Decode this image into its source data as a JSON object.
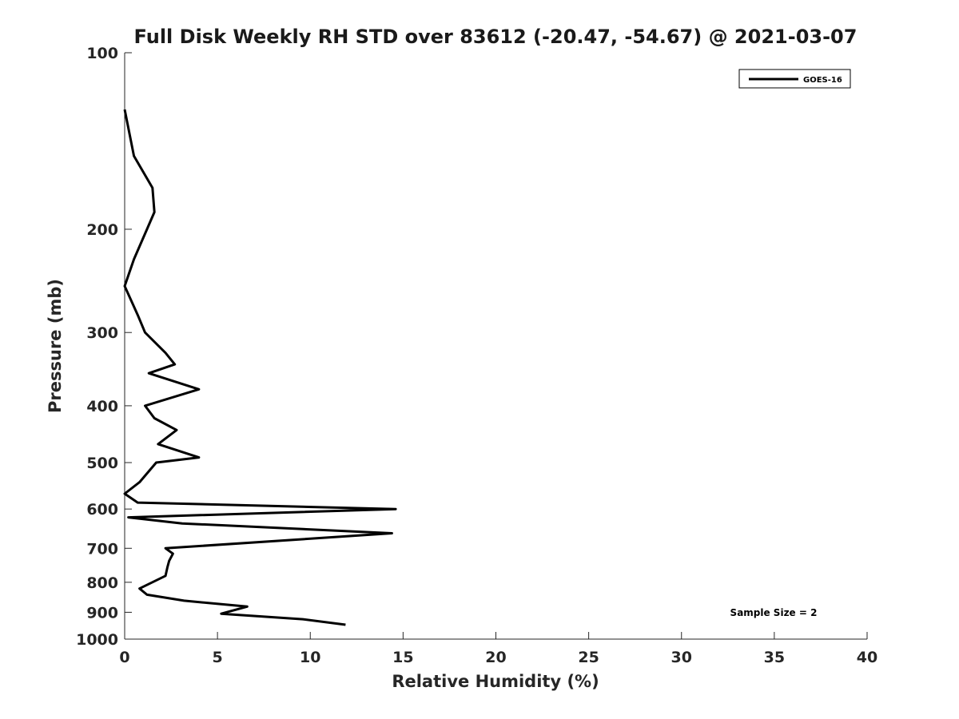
{
  "chart_data": {
    "type": "line",
    "title": "Full Disk Weekly RH STD over 83612 (-20.47, -54.67) @ 2021-03-07",
    "xlabel": "Relative Humidity (%)",
    "ylabel": "Pressure (mb)",
    "xlim": [
      0,
      40
    ],
    "ylim": [
      100,
      1000
    ],
    "yscale": "log",
    "yreversed": true,
    "grid": false,
    "x_ticks": [
      0,
      5,
      10,
      15,
      20,
      25,
      30,
      35,
      40
    ],
    "x_tick_labels": [
      "0",
      "5",
      "10",
      "15",
      "20",
      "25",
      "30",
      "35",
      "40"
    ],
    "y_ticks": [
      100,
      200,
      300,
      400,
      500,
      600,
      700,
      800,
      900,
      1000
    ],
    "y_tick_labels": [
      "100",
      "200",
      "300",
      "400",
      "500",
      "600",
      "700",
      "800",
      "900",
      "1000"
    ],
    "legend_position": "top-right",
    "annotation": "Sample Size = 2",
    "series": [
      {
        "name": "GOES-16",
        "color": "#000000",
        "points": [
          [
            0.0,
            125
          ],
          [
            0.5,
            150
          ],
          [
            1.5,
            170
          ],
          [
            1.6,
            187
          ],
          [
            1.2,
            200
          ],
          [
            0.5,
            225
          ],
          [
            0.0,
            250
          ],
          [
            0.7,
            280
          ],
          [
            1.1,
            300
          ],
          [
            2.2,
            325
          ],
          [
            2.7,
            340
          ],
          [
            1.3,
            352
          ],
          [
            4.0,
            375
          ],
          [
            1.1,
            400
          ],
          [
            1.6,
            420
          ],
          [
            2.8,
            440
          ],
          [
            1.8,
            465
          ],
          [
            4.0,
            490
          ],
          [
            1.7,
            500
          ],
          [
            0.8,
            540
          ],
          [
            0.0,
            565
          ],
          [
            0.7,
            585
          ],
          [
            14.6,
            600
          ],
          [
            0.2,
            620
          ],
          [
            3.1,
            635
          ],
          [
            14.4,
            660
          ],
          [
            2.2,
            700
          ],
          [
            2.6,
            715
          ],
          [
            2.4,
            735
          ],
          [
            2.3,
            755
          ],
          [
            2.2,
            780
          ],
          [
            0.8,
            820
          ],
          [
            1.2,
            840
          ],
          [
            3.2,
            860
          ],
          [
            6.6,
            880
          ],
          [
            5.2,
            905
          ],
          [
            9.6,
            925
          ],
          [
            11.9,
            945
          ]
        ]
      }
    ]
  }
}
